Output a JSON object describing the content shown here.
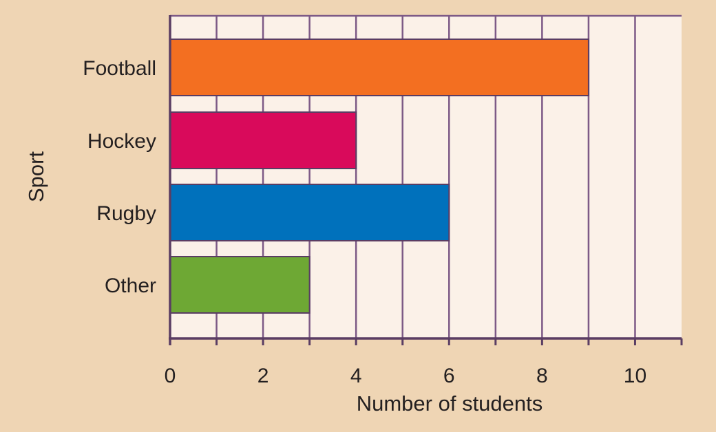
{
  "chart_data": {
    "type": "bar",
    "orientation": "horizontal",
    "categories": [
      "Football",
      "Hockey",
      "Rugby",
      "Other"
    ],
    "values": [
      9,
      4,
      6,
      3
    ],
    "xlabel": "Number of students",
    "ylabel": "Sport",
    "xlim": [
      0,
      11
    ],
    "xticks": [
      0,
      2,
      4,
      6,
      8,
      10
    ],
    "grid": true,
    "colors": {
      "background": "#efd5b4",
      "plot_area": "#fbf1e8",
      "grid": "#7d5a86",
      "axis": "#5a3d63",
      "bar_outline": "#5a3d63",
      "bars": [
        "#f36f21",
        "#d90a5b",
        "#0071bc",
        "#6ea834"
      ]
    }
  }
}
